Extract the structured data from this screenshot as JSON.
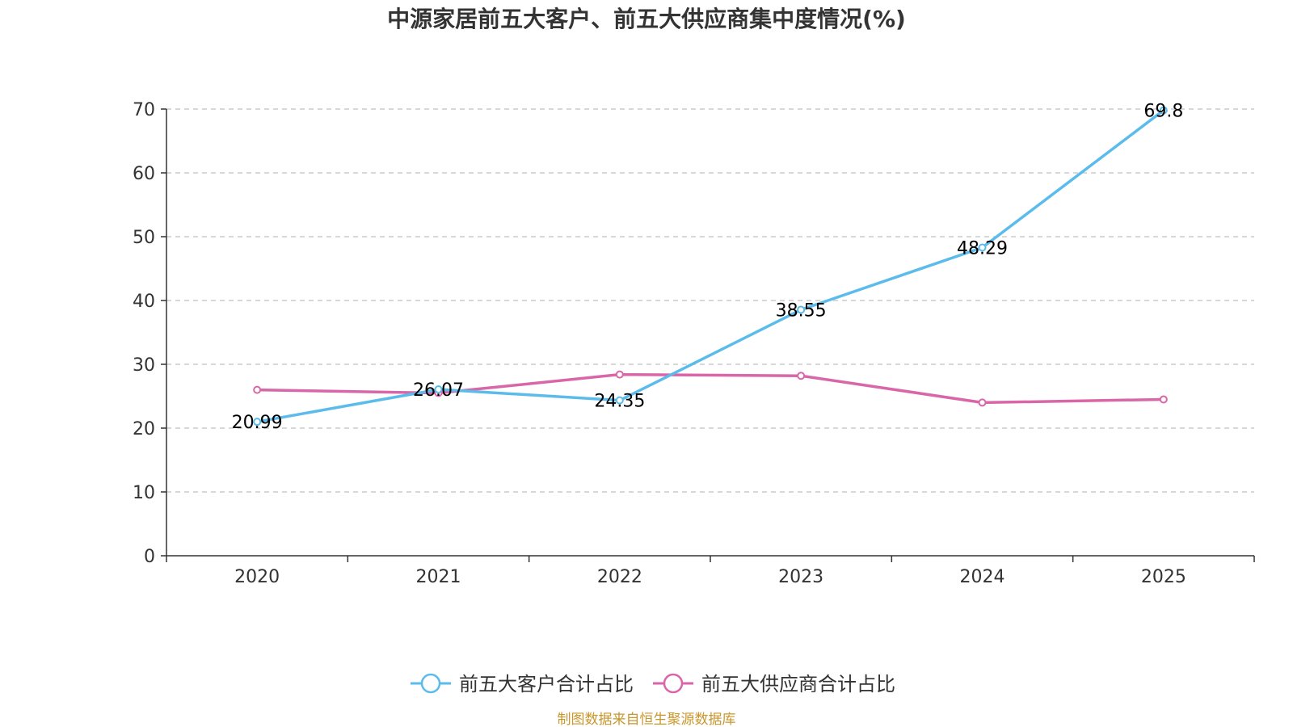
{
  "chart_data": {
    "type": "line",
    "title": "中源家居前五大客户、前五大供应商集中度情况(%)",
    "categories": [
      "2020",
      "2021",
      "2022",
      "2023",
      "2024",
      "2025"
    ],
    "ylim": [
      0,
      70
    ],
    "yticks": [
      0,
      10,
      20,
      30,
      40,
      50,
      60,
      70
    ],
    "grid": true,
    "legend_position": "bottom",
    "series": [
      {
        "name": "前五大客户合计占比",
        "color": "#5bbcec",
        "values": [
          20.99,
          26.07,
          24.35,
          38.55,
          48.29,
          69.8
        ],
        "labels": [
          "20.99",
          "26.07",
          "24.35",
          "38.55",
          "48.29",
          "69.8"
        ],
        "show_labels": true
      },
      {
        "name": "前五大供应商合计占比",
        "color": "#d966a8",
        "values": [
          26.0,
          25.5,
          28.4,
          28.2,
          24.0,
          24.5
        ],
        "show_labels": false
      }
    ],
    "source": "制图数据来自恒生聚源数据库",
    "source_color": "#c9962c"
  }
}
